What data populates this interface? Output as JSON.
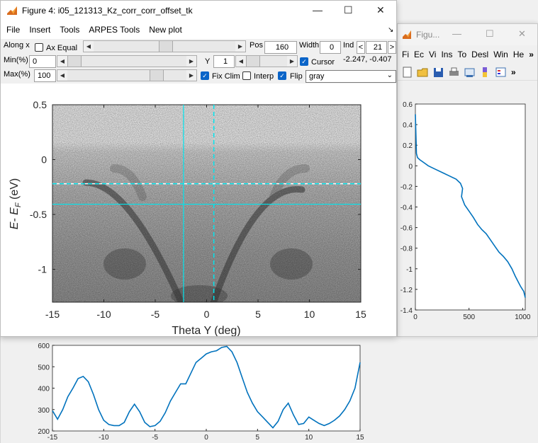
{
  "main_window": {
    "title": "Figure 4: i05_121313_Kz_corr_corr_offset_tk",
    "menu": [
      "File",
      "Insert",
      "Tools",
      "ARPES Tools",
      "New plot"
    ],
    "controls": {
      "along_x_label": "Along x",
      "ax_equal_label": "Ax Equal",
      "pos_label": "Pos",
      "pos_value": "160",
      "width_label": "Width",
      "width_value": "0",
      "ind_label": "Ind",
      "ind_value": "21",
      "ind_prev": "<",
      "ind_next": ">",
      "min_label": "Min(%)",
      "min_value": "0",
      "max_label": "Max(%)",
      "max_value": "100",
      "y_label": "Y",
      "y_value": "1",
      "cursor_label": "Cursor",
      "cursor_checked": true,
      "cursor_coords": "-2.247, -0.407",
      "fix_clim_label": "Fix Clim",
      "fix_clim_checked": true,
      "interp_label": "Interp",
      "interp_checked": false,
      "flip_label": "Flip",
      "flip_checked": true,
      "colormap_value": "gray"
    },
    "plot": {
      "xlabel": "Theta Y (deg)",
      "ylabel": "E- E",
      "ylabel_sub": "F",
      "ylabel_unit": " (eV)",
      "xticks": [
        "-15",
        "-10",
        "-5",
        "0",
        "5",
        "10",
        "15"
      ],
      "yticks": [
        "0.5",
        "0",
        "-0.5",
        "-1"
      ],
      "cursor_color": "#00e5ee"
    }
  },
  "right_window": {
    "title": "Figu...",
    "menu": [
      "Fi",
      "Ec",
      "Vi",
      "Ins",
      "To",
      "Desl",
      "Win",
      "He"
    ],
    "more": "»"
  },
  "chart_data": [
    {
      "type": "line",
      "title": "",
      "xlabel": "",
      "ylabel": "",
      "xlim": [
        -15,
        15
      ],
      "ylim": [
        200,
        600
      ],
      "xticks": [
        "-15",
        "-10",
        "-5",
        "0",
        "5",
        "10",
        "15"
      ],
      "yticks": [
        "200",
        "300",
        "400",
        "500",
        "600"
      ],
      "color": "#0072bd",
      "x": [
        -15,
        -14.5,
        -14,
        -13.5,
        -13,
        -12.5,
        -12,
        -11.5,
        -11,
        -10.5,
        -10,
        -9.5,
        -9,
        -8.5,
        -8,
        -7.5,
        -7,
        -6.5,
        -6,
        -5.5,
        -5,
        -4.5,
        -4,
        -3.5,
        -3,
        -2.5,
        -2,
        -1.5,
        -1,
        -0.5,
        0,
        0.5,
        1,
        1.5,
        2,
        2.5,
        3,
        3.5,
        4,
        4.5,
        5,
        5.5,
        6,
        6.5,
        7,
        7.5,
        8,
        8.5,
        9,
        9.5,
        10,
        10.5,
        11,
        11.5,
        12,
        12.5,
        13,
        13.5,
        14,
        14.5,
        15
      ],
      "values": [
        295,
        255,
        300,
        360,
        400,
        445,
        455,
        430,
        370,
        300,
        250,
        230,
        225,
        225,
        240,
        290,
        325,
        290,
        240,
        220,
        225,
        245,
        285,
        340,
        380,
        420,
        420,
        470,
        520,
        540,
        560,
        570,
        575,
        590,
        595,
        570,
        520,
        450,
        380,
        330,
        290,
        265,
        240,
        215,
        245,
        300,
        330,
        275,
        230,
        235,
        265,
        250,
        235,
        225,
        235,
        250,
        270,
        300,
        340,
        400,
        520
      ]
    },
    {
      "type": "line",
      "title": "",
      "xlabel": "",
      "ylabel": "",
      "xlim": [
        0,
        1024
      ],
      "ylim": [
        -1.4,
        0.6
      ],
      "xticks": [
        "0",
        "500",
        "1000"
      ],
      "yticks": [
        "0.6",
        "0.4",
        "0.2",
        "0",
        "-0.2",
        "-0.4",
        "-0.6",
        "-0.8",
        "-1",
        "-1.2",
        "-1.4"
      ],
      "color": "#0072bd",
      "x": [
        0,
        5,
        10,
        20,
        40,
        80,
        120,
        180,
        260,
        320,
        380,
        420,
        440,
        430,
        460,
        500,
        540,
        580,
        620,
        660,
        700,
        740,
        780,
        820,
        860,
        900,
        930,
        960,
        980,
        1010,
        1024
      ],
      "values": [
        0.5,
        0.3,
        0.12,
        0.08,
        0.06,
        0.03,
        0.0,
        -0.03,
        -0.07,
        -0.1,
        -0.13,
        -0.17,
        -0.22,
        -0.3,
        -0.38,
        -0.44,
        -0.5,
        -0.57,
        -0.62,
        -0.66,
        -0.72,
        -0.78,
        -0.84,
        -0.88,
        -0.93,
        -1.0,
        -1.07,
        -1.13,
        -1.17,
        -1.22,
        -1.28
      ]
    }
  ]
}
